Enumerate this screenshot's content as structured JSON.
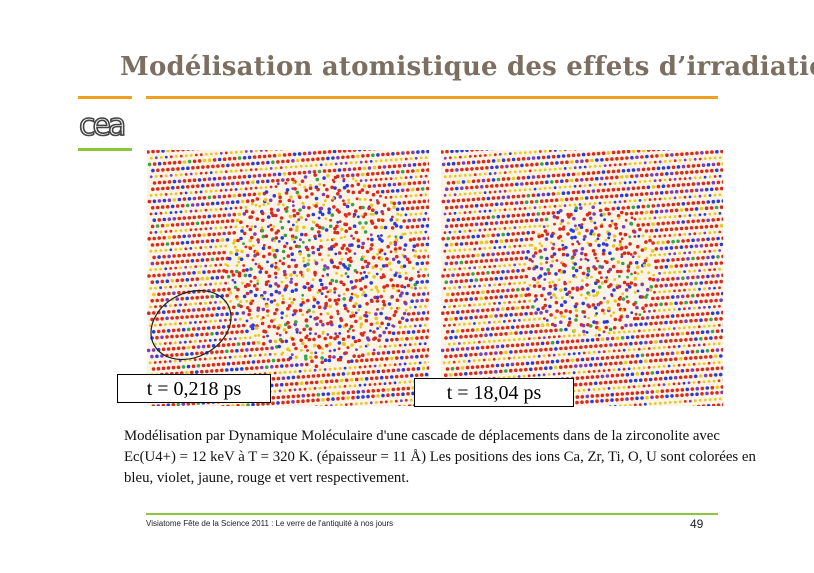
{
  "slide": {
    "title": "Modélisation atomistique des effets d’irradiation",
    "logo_text": "cea",
    "figure": {
      "left_panel": {
        "time_label": "t = 0,218 ps"
      },
      "right_panel": {
        "time_label": "t = 18,04 ps"
      },
      "ion_colors": {
        "Ca": "#2b3bd6",
        "Zr": "#7b3fb8",
        "Ti": "#e8c81e",
        "O": "#d92a1c",
        "U": "#3aa34a"
      }
    },
    "caption": "Modélisation par Dynamique Moléculaire d'une cascade de déplacements dans de la zirconolite avec Ec(U4+) = 12 keV à T = 320 K. (épaisseur = 11 Å) Les positions des ions Ca, Zr, Ti, O, U sont colorées en bleu, violet, jaune, rouge et vert respectivement.",
    "footer": {
      "text": "Visiatome Fête de la Science  2011 : Le verre de l'antiquité à nos jours",
      "page_number": "49"
    },
    "colors": {
      "title": "#7c6f62",
      "orange_rule": "#f0a020",
      "green_rule": "#8cc63f"
    }
  }
}
